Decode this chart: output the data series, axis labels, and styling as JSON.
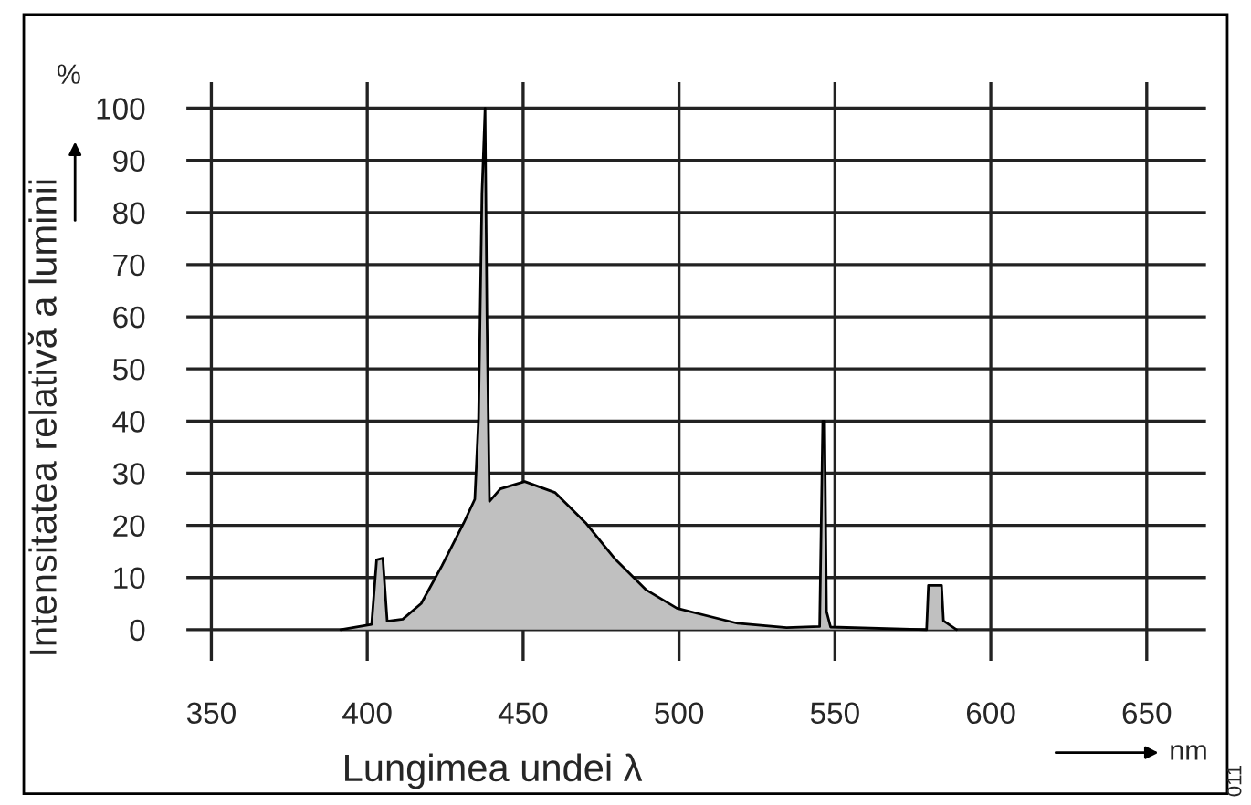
{
  "chart_data": {
    "type": "area",
    "xlabel": "Lungimea undei λ",
    "ylabel": "Intensitatea relativă a luminii",
    "annotations": [
      "%",
      "nm",
      "011"
    ],
    "series": [
      {
        "color": "#c0c0c0",
        "x": [
          391.5,
          401.4,
          403,
          405,
          406.4,
          411.4,
          417.3,
          424,
          431,
          434.5,
          435.7,
          436.8,
          437.8,
          438.4,
          439.2,
          442.7,
          450.5,
          460.2,
          470,
          479.7,
          489.5,
          499.3,
          518.8,
          534.5,
          545.1,
          546.1,
          546.7,
          547.3,
          548.6,
          579.4,
          580,
          584.2,
          584.8,
          589
        ],
        "values": [
          0,
          1,
          13.4,
          13.7,
          1.6,
          2,
          5,
          12.3,
          20.5,
          25,
          40.4,
          83.6,
          100,
          60,
          24.6,
          27,
          28.4,
          26.3,
          20.5,
          13.4,
          7.6,
          4.1,
          1.2,
          0.4,
          0.6,
          40,
          40,
          3.5,
          0.5,
          0,
          8.5,
          8.5,
          1.7,
          0
        ]
      }
    ],
    "xlim": [
      342,
      669
    ],
    "ylim": [
      -6,
      105
    ],
    "xticks": [
      350,
      400,
      450,
      500,
      550,
      600,
      650
    ],
    "yticks": [
      0,
      10,
      20,
      30,
      40,
      50,
      60,
      70,
      80,
      90,
      100
    ],
    "grid": true
  }
}
